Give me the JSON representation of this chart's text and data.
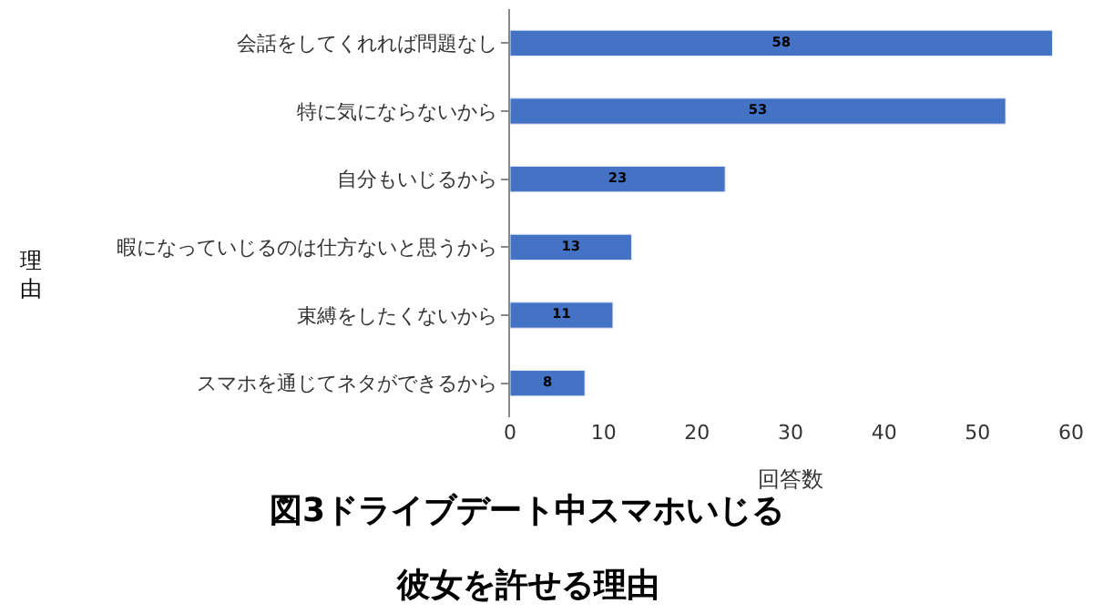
{
  "chart_data": {
    "type": "bar",
    "orientation": "horizontal",
    "title": "図3ドライブデート中スマホいじる",
    "subtitle": "彼女を許せる理由",
    "xlabel": "回答数",
    "ylabel": "理由",
    "categories": [
      "会話をしてくれれば問題なし",
      "特に気にならないから",
      "自分もいじるから",
      "暇になっていじるのは仕方ないと思うから",
      "束縛をしたくないから",
      "スマホを通じてネタができるから"
    ],
    "values": [
      58,
      53,
      23,
      13,
      11,
      8
    ],
    "color": "#4472c4",
    "data_labels": true,
    "xlim": [
      0,
      60
    ],
    "xticks": [
      0,
      10,
      20,
      30,
      40,
      50,
      60
    ]
  }
}
